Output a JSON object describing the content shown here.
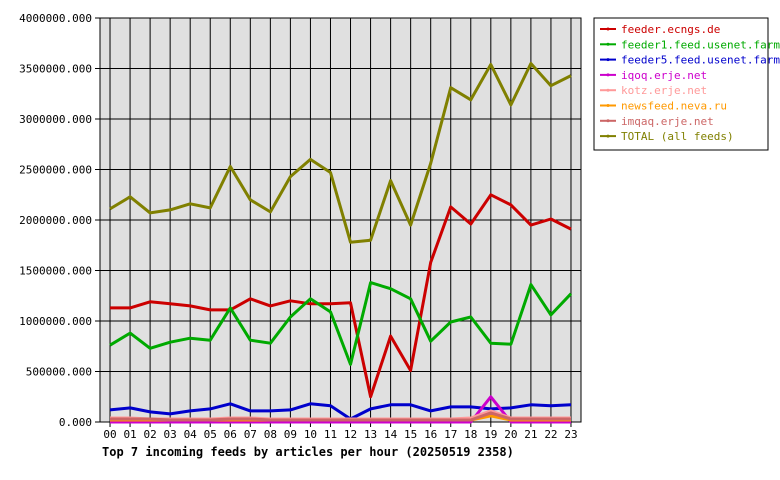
{
  "chart_data": {
    "type": "line",
    "title": "Top 7 incoming feeds by articles per hour (20250519 2358)",
    "xlabel": "",
    "ylabel": "",
    "ylim": [
      0,
      4000000
    ],
    "yticks": [
      "0.000",
      "500000.000",
      "1000000.000",
      "1500000.000",
      "2000000.000",
      "2500000.000",
      "3000000.000",
      "3500000.000",
      "4000000.000"
    ],
    "ytick_values": [
      0,
      500000,
      1000000,
      1500000,
      2000000,
      2500000,
      3000000,
      3500000,
      4000000
    ],
    "categories": [
      "00",
      "01",
      "02",
      "03",
      "04",
      "05",
      "06",
      "07",
      "08",
      "09",
      "10",
      "11",
      "12",
      "13",
      "14",
      "15",
      "16",
      "17",
      "18",
      "19",
      "20",
      "21",
      "22",
      "23"
    ],
    "grid": true,
    "legend_position": "right",
    "background": "#e0e0e0",
    "series": [
      {
        "name": "feeder.ecngs.de",
        "color": "#cc0000",
        "values": [
          1130000,
          1130000,
          1190000,
          1170000,
          1150000,
          1110000,
          1110000,
          1220000,
          1150000,
          1200000,
          1170000,
          1170000,
          1180000,
          250000,
          850000,
          510000,
          1580000,
          2130000,
          1960000,
          2250000,
          2150000,
          1950000,
          2010000,
          1910000
        ]
      },
      {
        "name": "feeder1.feed.usenet.farm",
        "color": "#00aa00",
        "values": [
          760000,
          880000,
          730000,
          790000,
          830000,
          810000,
          1130000,
          810000,
          780000,
          1040000,
          1220000,
          1090000,
          570000,
          1380000,
          1320000,
          1220000,
          800000,
          990000,
          1040000,
          780000,
          770000,
          1360000,
          1060000,
          1270000
        ]
      },
      {
        "name": "feeder5.feed.usenet.farm",
        "color": "#0000cc",
        "values": [
          120000,
          140000,
          100000,
          80000,
          110000,
          130000,
          180000,
          110000,
          110000,
          120000,
          180000,
          160000,
          30000,
          130000,
          170000,
          170000,
          110000,
          150000,
          150000,
          130000,
          140000,
          170000,
          160000,
          170000
        ]
      },
      {
        "name": "iqoq.erje.net",
        "color": "#cc00cc",
        "values": [
          0,
          0,
          0,
          0,
          0,
          0,
          0,
          0,
          0,
          0,
          0,
          0,
          0,
          0,
          0,
          0,
          0,
          0,
          0,
          250000,
          0,
          0,
          0,
          0
        ]
      },
      {
        "name": "kotz.erje.net",
        "color": "#ff9999",
        "values": [
          40000,
          40000,
          30000,
          30000,
          30000,
          30000,
          40000,
          40000,
          30000,
          30000,
          30000,
          30000,
          30000,
          30000,
          30000,
          30000,
          30000,
          30000,
          40000,
          110000,
          40000,
          40000,
          40000,
          40000
        ]
      },
      {
        "name": "newsfeed.neva.ru",
        "color": "#ff9900",
        "values": [
          20000,
          20000,
          20000,
          20000,
          20000,
          20000,
          20000,
          20000,
          20000,
          20000,
          20000,
          20000,
          20000,
          20000,
          20000,
          20000,
          20000,
          20000,
          20000,
          60000,
          20000,
          20000,
          20000,
          20000
        ]
      },
      {
        "name": "imqaq.erje.net",
        "color": "#cc6666",
        "values": [
          30000,
          30000,
          30000,
          20000,
          20000,
          20000,
          30000,
          30000,
          20000,
          20000,
          20000,
          20000,
          20000,
          20000,
          20000,
          20000,
          20000,
          20000,
          20000,
          90000,
          30000,
          30000,
          30000,
          30000
        ]
      },
      {
        "name": "TOTAL (all feeds)",
        "color": "#808000",
        "values": [
          2110000,
          2230000,
          2070000,
          2100000,
          2160000,
          2120000,
          2530000,
          2200000,
          2080000,
          2430000,
          2600000,
          2470000,
          1780000,
          1800000,
          2390000,
          1950000,
          2560000,
          3310000,
          3190000,
          3540000,
          3140000,
          3550000,
          3330000,
          3430000
        ]
      }
    ]
  }
}
